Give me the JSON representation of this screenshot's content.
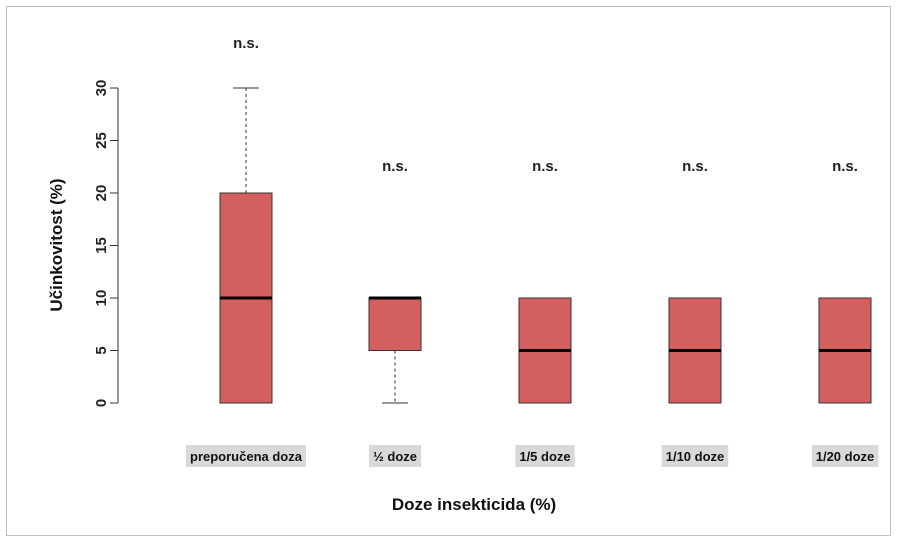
{
  "chart_data": {
    "type": "box",
    "ylabel": "Učinkovitost  (%)",
    "xlabel": "Doze insekticida (%)",
    "ylim": [
      0,
      30
    ],
    "yticks": [
      "0",
      "5",
      "10",
      "15",
      "20",
      "25",
      "30"
    ],
    "box_fill": "#d45f5f",
    "label_bg": "#d9d9d9",
    "categories": [
      "preporučena  doza",
      "½ doze",
      "1/5 doze",
      "1/10 doze",
      "1/20 doze"
    ],
    "boxes": [
      {
        "whisker_low": 0,
        "q1": 0,
        "median": 10,
        "q3": 20,
        "whisker_high": 30,
        "significance": "n.s."
      },
      {
        "whisker_low": 0,
        "q1": 5,
        "median": 10,
        "q3": 10,
        "whisker_high": 10,
        "significance": "n.s."
      },
      {
        "whisker_low": 0,
        "q1": 0,
        "median": 5,
        "q3": 10,
        "whisker_high": 10,
        "significance": "n.s."
      },
      {
        "whisker_low": 0,
        "q1": 0,
        "median": 5,
        "q3": 10,
        "whisker_high": 10,
        "significance": "n.s."
      },
      {
        "whisker_low": 0,
        "q1": 0,
        "median": 5,
        "q3": 10,
        "whisker_high": 10,
        "significance": "n.s."
      }
    ]
  }
}
